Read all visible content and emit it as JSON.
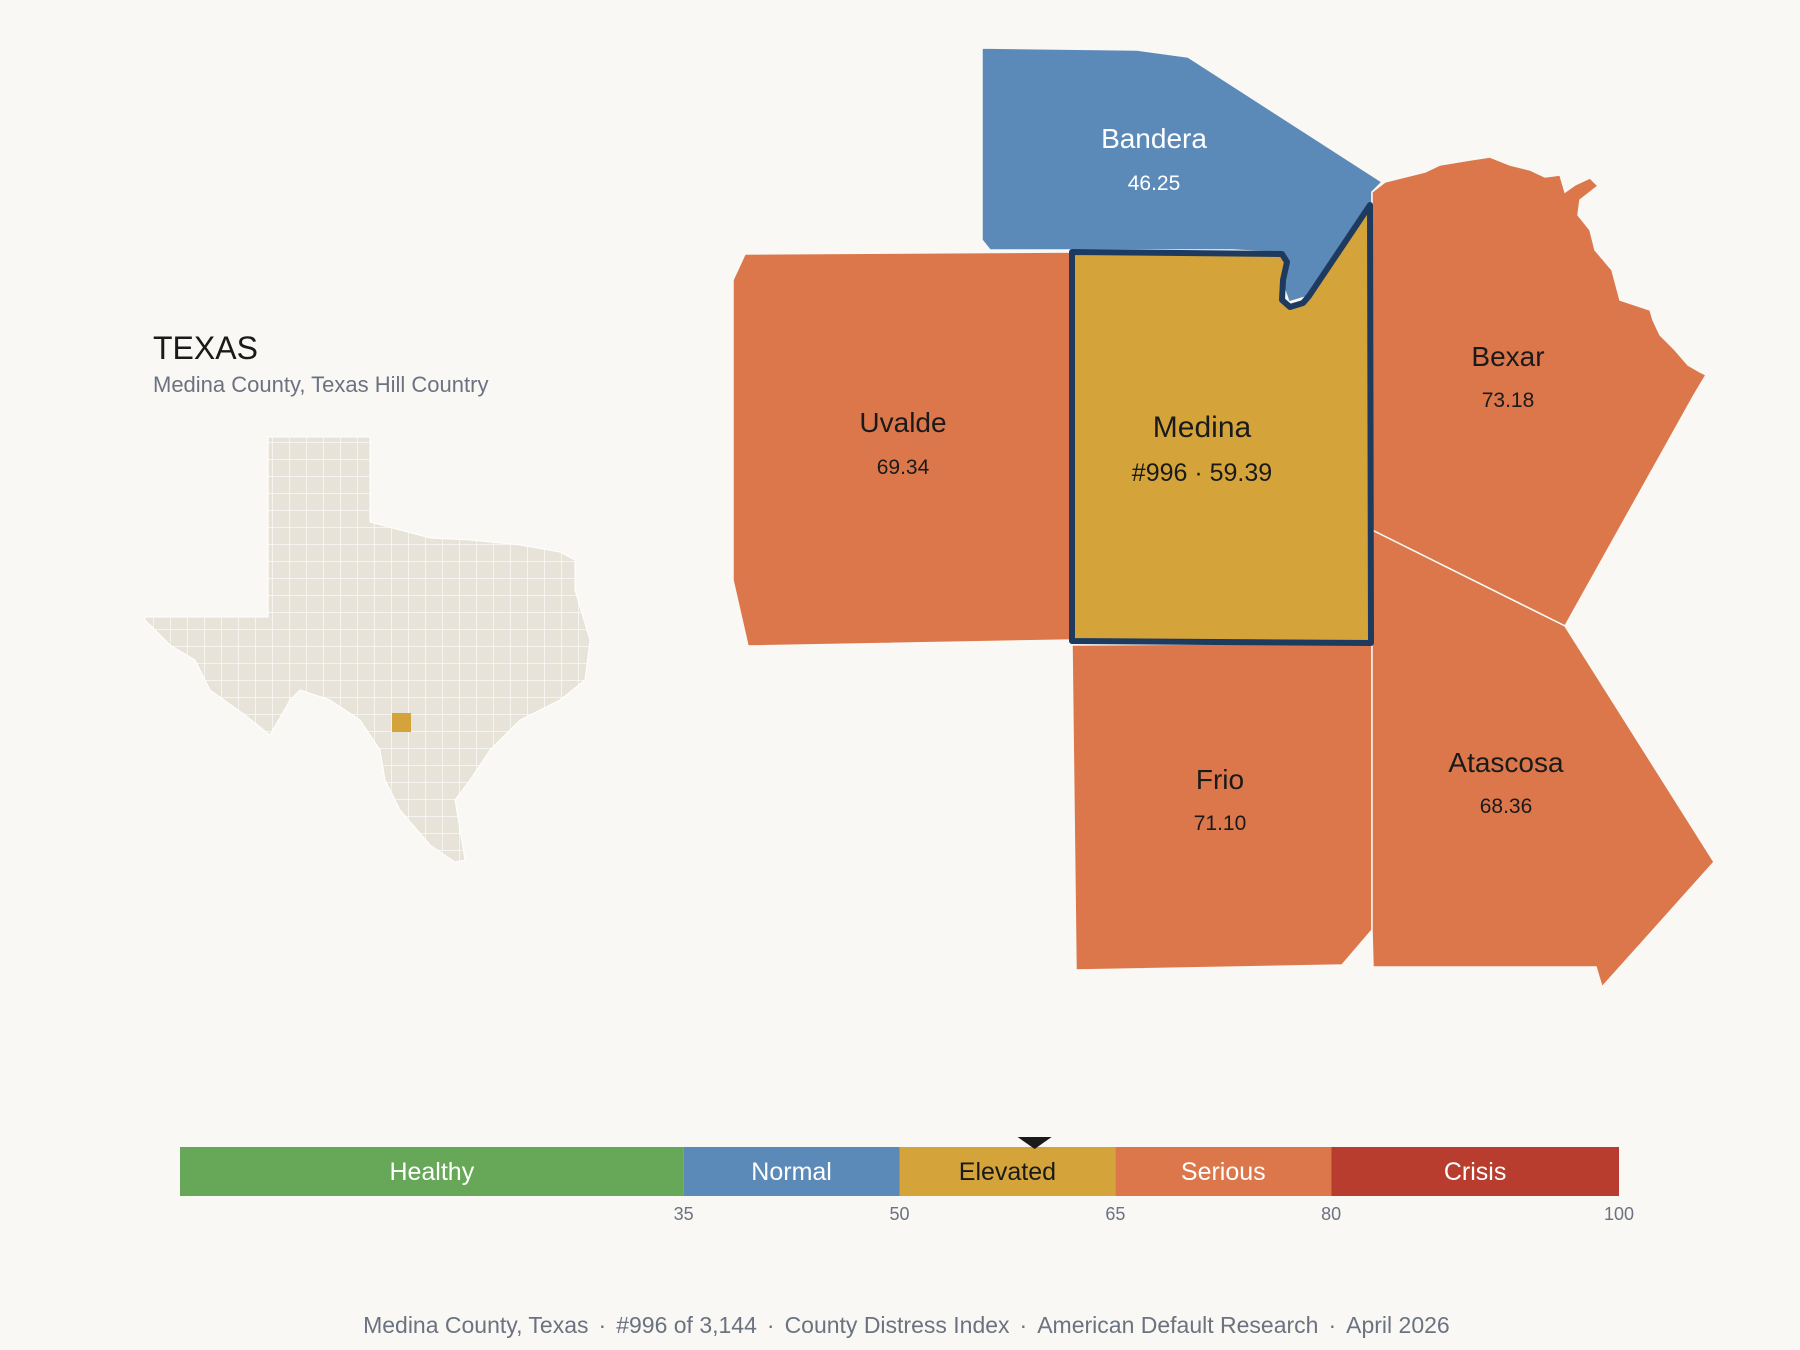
{
  "inset": {
    "title": "TEXAS",
    "subtitle": "Medina County, Texas Hill Country",
    "base_color": "#e8e3d8",
    "highlight_color": "#d4a43a"
  },
  "counties": [
    {
      "id": "bandera",
      "name": "Bandera",
      "value_text": "46.25",
      "value": 46.25,
      "color": "#5b8ab9",
      "text_color": "#ffffff"
    },
    {
      "id": "uvalde",
      "name": "Uvalde",
      "value_text": "69.34",
      "value": 69.34,
      "color": "#db774a",
      "text_color": "#1a1a1a"
    },
    {
      "id": "medina",
      "name": "Medina",
      "value_text": "#996 · 59.39",
      "value": 59.39,
      "rank": 996,
      "color": "#d4a43a",
      "text_color": "#1a1a1a",
      "focus": true
    },
    {
      "id": "bexar",
      "name": "Bexar",
      "value_text": "73.18",
      "value": 73.18,
      "color": "#db774a",
      "text_color": "#1a1a1a"
    },
    {
      "id": "frio",
      "name": "Frio",
      "value_text": "71.10",
      "value": 71.1,
      "color": "#db774a",
      "text_color": "#1a1a1a"
    },
    {
      "id": "atascosa",
      "name": "Atascosa",
      "value_text": "68.36",
      "value": 68.36,
      "color": "#db774a",
      "text_color": "#1a1a1a"
    }
  ],
  "legend": {
    "bands": [
      {
        "label": "Healthy",
        "from": 0,
        "to": 35,
        "color": "#66a758",
        "text_color": "#ffffff"
      },
      {
        "label": "Normal",
        "from": 35,
        "to": 50,
        "color": "#5b8ab9",
        "text_color": "#ffffff"
      },
      {
        "label": "Elevated",
        "from": 50,
        "to": 65,
        "color": "#d4a43a",
        "text_color": "#1a1a1a"
      },
      {
        "label": "Serious",
        "from": 65,
        "to": 80,
        "color": "#db774a",
        "text_color": "#ffffff"
      },
      {
        "label": "Crisis",
        "from": 80,
        "to": 100,
        "color": "#b83d2e",
        "text_color": "#ffffff"
      }
    ],
    "ticks": [
      "35",
      "50",
      "65",
      "80",
      "100"
    ],
    "marker_value": 59.39
  },
  "footer": {
    "items": [
      "Medina County, Texas",
      "#996 of 3,144",
      "County Distress Index",
      "American Default Research",
      "April 2026"
    ]
  },
  "colors": {
    "focus_outline": "#1e3a5f",
    "background": "#f9f8f5"
  }
}
